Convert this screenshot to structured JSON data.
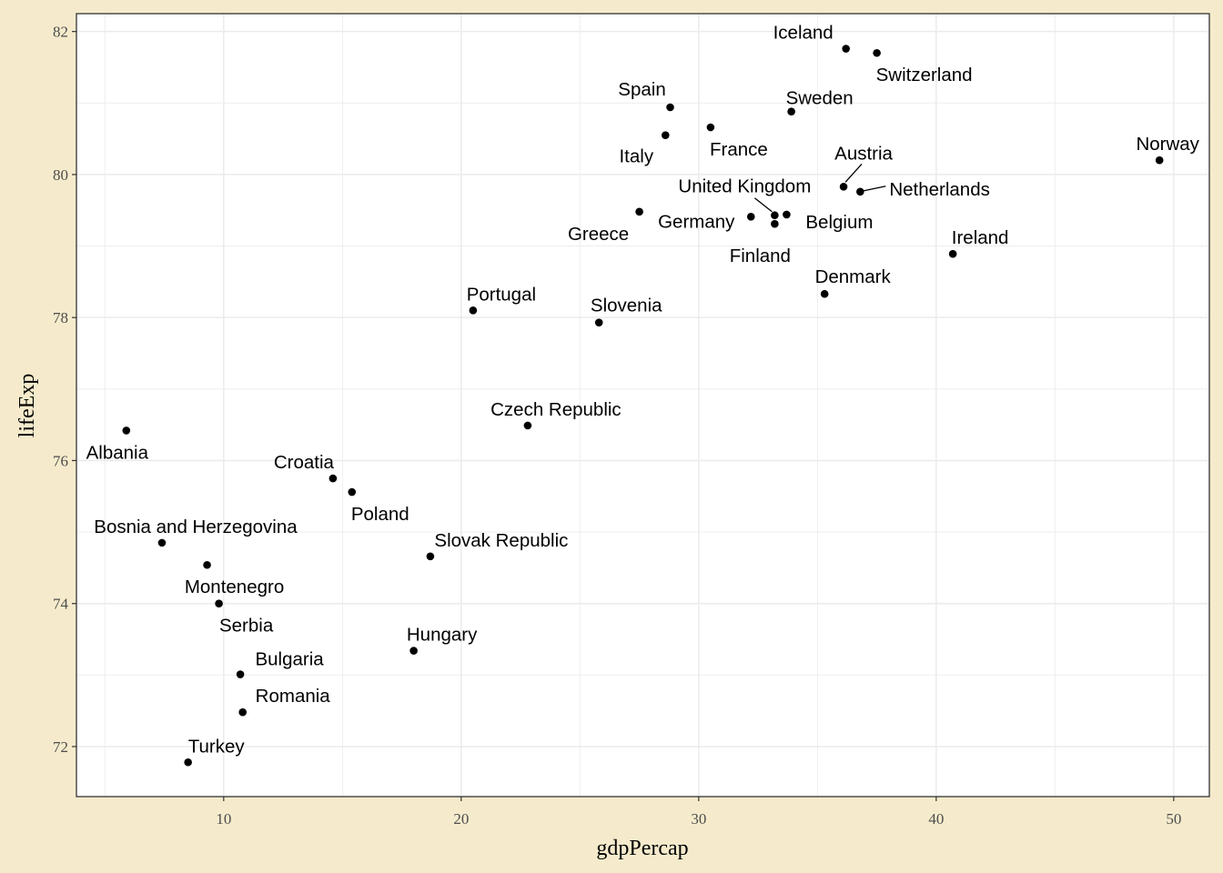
{
  "chart_data": {
    "type": "scatter",
    "xlabel": "gdpPercap",
    "ylabel": "lifeExp",
    "xlim": [
      3.8,
      51.5
    ],
    "ylim": [
      71.3,
      82.25
    ],
    "xticks": [
      "10",
      "20",
      "30",
      "40",
      "50"
    ],
    "yticks": [
      "72",
      "74",
      "76",
      "78",
      "80",
      "82"
    ],
    "grid": true,
    "legend": "none",
    "colors": {
      "point": "#000000",
      "panel": "#ffffff",
      "background": "#f5ebcc",
      "grid": "#ebebeb"
    },
    "points": [
      {
        "label": "Iceland",
        "x": 36.2,
        "y": 81.76
      },
      {
        "label": "Switzerland",
        "x": 37.5,
        "y": 81.7
      },
      {
        "label": "Spain",
        "x": 28.8,
        "y": 80.94
      },
      {
        "label": "Sweden",
        "x": 33.9,
        "y": 80.88
      },
      {
        "label": "France",
        "x": 30.5,
        "y": 80.66
      },
      {
        "label": "Italy",
        "x": 28.6,
        "y": 80.55
      },
      {
        "label": "Norway",
        "x": 49.4,
        "y": 80.2
      },
      {
        "label": "Austria",
        "x": 36.1,
        "y": 79.83
      },
      {
        "label": "Netherlands",
        "x": 36.8,
        "y": 79.76
      },
      {
        "label": "Greece",
        "x": 27.5,
        "y": 79.48
      },
      {
        "label": "Germany",
        "x": 32.2,
        "y": 79.41
      },
      {
        "label": "Belgium",
        "x": 33.7,
        "y": 79.44
      },
      {
        "label": "United Kingdom",
        "x": 33.2,
        "y": 79.43
      },
      {
        "label": "Finland",
        "x": 33.2,
        "y": 79.31
      },
      {
        "label": "Ireland",
        "x": 40.7,
        "y": 78.89
      },
      {
        "label": "Denmark",
        "x": 35.3,
        "y": 78.33
      },
      {
        "label": "Portugal",
        "x": 20.5,
        "y": 78.1
      },
      {
        "label": "Slovenia",
        "x": 25.8,
        "y": 77.93
      },
      {
        "label": "Czech Republic",
        "x": 22.8,
        "y": 76.49
      },
      {
        "label": "Albania",
        "x": 5.9,
        "y": 76.42
      },
      {
        "label": "Croatia",
        "x": 14.6,
        "y": 75.75
      },
      {
        "label": "Poland",
        "x": 15.4,
        "y": 75.56
      },
      {
        "label": "Bosnia and Herzegovina",
        "x": 7.4,
        "y": 74.85
      },
      {
        "label": "Slovak Republic",
        "x": 18.7,
        "y": 74.66
      },
      {
        "label": "Montenegro",
        "x": 9.3,
        "y": 74.54
      },
      {
        "label": "Serbia",
        "x": 9.8,
        "y": 74.0
      },
      {
        "label": "Hungary",
        "x": 18.0,
        "y": 73.34
      },
      {
        "label": "Bulgaria",
        "x": 10.7,
        "y": 73.01
      },
      {
        "label": "Romania",
        "x": 10.8,
        "y": 72.48
      },
      {
        "label": "Turkey",
        "x": 8.5,
        "y": 71.78
      }
    ]
  }
}
